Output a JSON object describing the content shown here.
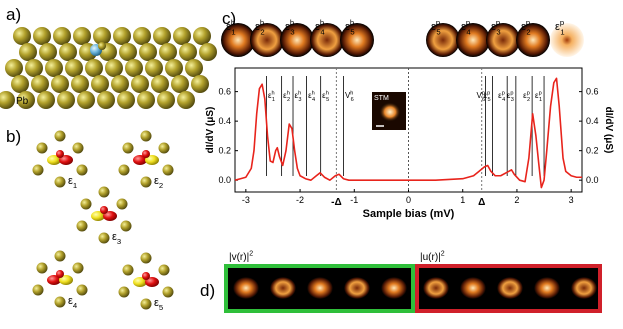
{
  "figure": {
    "a": {
      "label": "a)",
      "atom": "Pb"
    },
    "b": {
      "label": "b)",
      "states": [
        {
          "base": "ε",
          "sub": "1"
        },
        {
          "base": "ε",
          "sub": "2"
        },
        {
          "base": "ε",
          "sub": "3"
        },
        {
          "base": "ε",
          "sub": "4"
        },
        {
          "base": "ε",
          "sub": "5"
        }
      ]
    },
    "c": {
      "label": "c)",
      "inset": "STM",
      "images": [
        {
          "base": "ε",
          "sub": "1",
          "sup": "h"
        },
        {
          "base": "ε",
          "sub": "2",
          "sup": "h"
        },
        {
          "base": "ε",
          "sub": "3",
          "sup": "h"
        },
        {
          "base": "ε",
          "sub": "4",
          "sup": "h"
        },
        {
          "base": "ε",
          "sub": "5",
          "sup": "h"
        },
        {
          "base": "ε",
          "sub": "5",
          "sup": "p"
        },
        {
          "base": "ε",
          "sub": "4",
          "sup": "p"
        },
        {
          "base": "ε",
          "sub": "3",
          "sup": "p"
        },
        {
          "base": "ε",
          "sub": "2",
          "sup": "p"
        },
        {
          "base": "ε",
          "sub": "1",
          "sup": "p"
        }
      ]
    },
    "d": {
      "label": "d)",
      "v_title": {
        "text": "|v(r)|",
        "sup": "2"
      },
      "u_title": {
        "text": "|u(r)|",
        "sup": "2"
      }
    }
  },
  "chart_data": {
    "type": "line",
    "x_label": "Sample bias (mV)",
    "y_label": "dI/dV (μS)",
    "y2_label": "dI/dV (μS)",
    "xlim": [
      -3.2,
      3.2
    ],
    "ylim": [
      -0.08,
      0.76
    ],
    "y2lim": [
      -0.08,
      0.76
    ],
    "xticks": [
      -3,
      -2,
      -1,
      0,
      1,
      2,
      3
    ],
    "yticks": [
      {
        "value": 0,
        "label": "0.0"
      },
      0.2,
      0.4,
      0.6
    ],
    "y2ticks": [
      {
        "value": 0,
        "label": "0.0"
      },
      0.2,
      0.4,
      0.6
    ],
    "zero_line": true,
    "x": [
      -3.2,
      -3.1,
      -3.0,
      -2.9,
      -2.85,
      -2.8,
      -2.75,
      -2.7,
      -2.65,
      -2.6,
      -2.55,
      -2.5,
      -2.45,
      -2.42,
      -2.38,
      -2.32,
      -2.26,
      -2.2,
      -2.15,
      -2.1,
      -2.05,
      -2.0,
      -1.9,
      -1.8,
      -1.7,
      -1.63,
      -1.55,
      -1.45,
      -1.35,
      -1.28,
      -1.2,
      -1.1,
      -1.0,
      -0.5,
      0,
      0.5,
      1.0,
      1.2,
      1.3,
      1.4,
      1.46,
      1.52,
      1.6,
      1.7,
      1.8,
      1.9,
      1.95,
      2.05,
      2.15,
      2.22,
      2.29,
      2.35,
      2.4,
      2.45,
      2.5,
      2.55,
      2.62,
      2.68,
      2.73,
      2.78,
      2.85,
      2.9,
      3.0,
      3.1,
      3.2
    ],
    "series": [
      {
        "color": "#e8241c",
        "values": [
          0.0,
          0.01,
          0.02,
          0.08,
          0.2,
          0.45,
          0.62,
          0.65,
          0.55,
          0.3,
          0.13,
          0.12,
          0.2,
          0.22,
          0.16,
          0.1,
          0.2,
          0.38,
          0.35,
          0.2,
          0.08,
          0.03,
          0.01,
          0.0,
          0.03,
          0.05,
          0.02,
          0.0,
          0.03,
          0.04,
          0.01,
          0.0,
          0.0,
          0.0,
          0.0,
          0.0,
          0.01,
          0.03,
          0.06,
          0.09,
          0.1,
          0.06,
          0.03,
          0.03,
          0.05,
          0.07,
          0.04,
          0.0,
          -0.01,
          0.15,
          0.45,
          0.3,
          0.12,
          -0.05,
          0.0,
          0.2,
          0.5,
          0.66,
          0.69,
          0.5,
          0.15,
          0.06,
          0.03,
          0.02,
          0.02
        ]
      }
    ],
    "gap_markers": [
      {
        "value": -1.33,
        "label": "-Δ"
      },
      {
        "value": 1.35,
        "label": "Δ"
      }
    ],
    "state_lines": [
      {
        "value": -2.62,
        "base": "ε",
        "sub": "1",
        "sup": "h"
      },
      {
        "value": -2.34,
        "base": "ε",
        "sub": "2",
        "sup": "h"
      },
      {
        "value": -2.13,
        "base": "ε",
        "sub": "3",
        "sup": "h"
      },
      {
        "value": -1.88,
        "base": "ε",
        "sub": "4",
        "sup": "h"
      },
      {
        "value": -1.62,
        "base": "ε",
        "sub": "5",
        "sup": "h"
      },
      {
        "value": -1.2,
        "base": "V",
        "sub": "6",
        "sup": "h"
      },
      {
        "value": 1.42,
        "base": "V",
        "sub": "6",
        "sup": "p"
      },
      {
        "value": 1.55,
        "base": "ε",
        "sub": "5",
        "sup": "p"
      },
      {
        "value": 1.82,
        "base": "ε",
        "sub": "4",
        "sup": "p"
      },
      {
        "value": 1.98,
        "base": "ε",
        "sub": "3",
        "sup": "p"
      },
      {
        "value": 2.28,
        "base": "ε",
        "sub": "2",
        "sup": "p"
      },
      {
        "value": 2.5,
        "base": "ε",
        "sub": "1",
        "sup": "p"
      }
    ]
  }
}
